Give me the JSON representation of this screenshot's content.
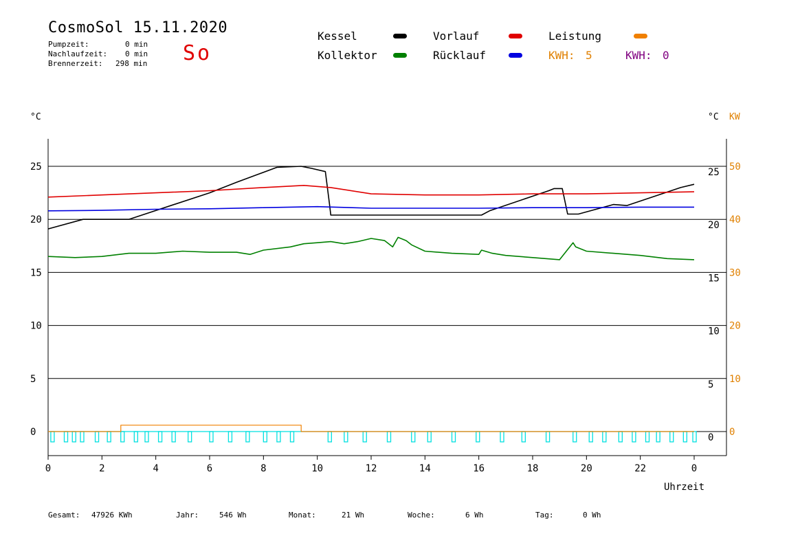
{
  "header": {
    "title": "CosmoSol 15.11.2020",
    "weekday": "So",
    "stats": [
      {
        "label": "Pumpzeit:",
        "value": "0 min"
      },
      {
        "label": "Nachlaufzeit:",
        "value": "0 min"
      },
      {
        "label": "Brennerzeit:",
        "value": "298 min"
      }
    ]
  },
  "legend": {
    "kessel": {
      "label": "Kessel",
      "color": "#000000"
    },
    "kollektor": {
      "label": "Kollektor",
      "color": "#008000"
    },
    "vorlauf": {
      "label": "Vorlauf",
      "color": "#e00000"
    },
    "ruecklauf": {
      "label": "Rücklauf",
      "color": "#0000e0"
    },
    "leistung": {
      "label": "Leistung",
      "color": "#f08000"
    },
    "kwh1": {
      "label": "KWH:",
      "value": "5",
      "color": "#e08000"
    },
    "kwh2": {
      "label": "KWH:",
      "value": "0",
      "color": "#800080"
    }
  },
  "units": {
    "left": "°C",
    "right": "°C",
    "right_kw": "KW"
  },
  "footer": {
    "gesamt": {
      "label": "Gesamt:",
      "value": "47926 KWh"
    },
    "jahr": {
      "label": "Jahr:",
      "value": "546 Wh"
    },
    "monat": {
      "label": "Monat:",
      "value": "21 Wh"
    },
    "woche": {
      "label": "Woche:",
      "value": "6 Wh"
    },
    "tag": {
      "label": "Tag:",
      "value": "0 Wh"
    }
  },
  "chart_data": {
    "type": "line",
    "xlabel": "Uhrzeit",
    "x_ticks": [
      "0",
      "2",
      "4",
      "6",
      "8",
      "10",
      "12",
      "14",
      "16",
      "18",
      "20",
      "22",
      "0"
    ],
    "y_ticks": [
      "0",
      "5",
      "10",
      "15",
      "20",
      "25"
    ],
    "y2_ticks": [
      "0",
      "10",
      "20",
      "30",
      "40",
      "50"
    ],
    "ylim": [
      -2,
      27.5
    ],
    "y2lim": [
      -4,
      55
    ],
    "xlim": [
      0,
      24
    ],
    "series": [
      {
        "name": "Kessel",
        "color": "#000000",
        "x": [
          0,
          1.3,
          2.3,
          3,
          6,
          7,
          8.5,
          9.4,
          9.8,
          10.3,
          10.45,
          10.5,
          13,
          16.1,
          16.4,
          18.6,
          18.8,
          19.1,
          19.3,
          19.7,
          21,
          21.5,
          23.5,
          24
        ],
        "y": [
          19.1,
          20,
          20,
          20,
          22.5,
          23.5,
          24.9,
          25,
          24.8,
          24.5,
          21.5,
          20.4,
          20.4,
          20.4,
          20.8,
          22.7,
          22.9,
          22.9,
          20.5,
          20.5,
          21.4,
          21.3,
          23,
          23.3
        ]
      },
      {
        "name": "Vorlauf",
        "color": "#e00000",
        "x": [
          0,
          2,
          4,
          6,
          8,
          9.5,
          10.5,
          12,
          14,
          16,
          18,
          20,
          22,
          24
        ],
        "y": [
          22.1,
          22.3,
          22.5,
          22.7,
          23,
          23.2,
          23,
          22.4,
          22.3,
          22.3,
          22.4,
          22.4,
          22.5,
          22.6
        ]
      },
      {
        "name": "Rücklauf",
        "color": "#0000e0",
        "x": [
          0,
          2,
          4,
          6,
          8,
          10,
          12,
          14,
          16,
          18,
          20,
          22,
          24
        ],
        "y": [
          20.8,
          20.85,
          20.95,
          21,
          21.1,
          21.2,
          21.05,
          21.05,
          21.05,
          21.1,
          21.1,
          21.15,
          21.15
        ]
      },
      {
        "name": "Kollektor",
        "color": "#008000",
        "x": [
          0,
          1,
          2,
          3,
          4,
          5,
          6,
          7,
          7.5,
          8,
          9,
          9.5,
          10,
          10.5,
          11,
          11.5,
          12,
          12.5,
          12.8,
          13,
          13.3,
          13.5,
          14,
          15,
          16,
          16.1,
          16.5,
          17,
          18,
          19,
          19.5,
          19.6,
          20,
          21,
          22,
          23,
          24
        ],
        "y": [
          16.5,
          16.4,
          16.5,
          16.8,
          16.8,
          17.0,
          16.9,
          16.9,
          16.7,
          17.1,
          17.4,
          17.7,
          17.8,
          17.9,
          17.7,
          17.9,
          18.2,
          18.0,
          17.4,
          18.3,
          18.0,
          17.6,
          17.0,
          16.8,
          16.7,
          17.1,
          16.8,
          16.6,
          16.4,
          16.2,
          17.8,
          17.4,
          17.0,
          16.8,
          16.6,
          16.3,
          16.2
        ]
      },
      {
        "name": "Leistung",
        "color": "#f08000",
        "x": [
          0,
          2.7,
          2.7,
          9.4,
          9.4,
          24
        ],
        "y": [
          0,
          0,
          0.6,
          0.6,
          0,
          0
        ]
      }
    ],
    "pump_pulses_x": [
      0.1,
      0.6,
      0.9,
      1.2,
      1.75,
      2.2,
      2.7,
      3.2,
      3.6,
      4.1,
      4.6,
      5.2,
      6.0,
      6.7,
      7.35,
      8.0,
      8.5,
      9.0,
      10.4,
      11.0,
      11.7,
      12.6,
      13.5,
      14.1,
      15.0,
      15.9,
      16.8,
      17.6,
      18.5,
      19.5,
      20.1,
      20.6,
      21.2,
      21.7,
      22.2,
      22.6,
      23.1,
      23.6,
      23.95
    ],
    "pump_color": "#00e0e0",
    "grid": true
  }
}
